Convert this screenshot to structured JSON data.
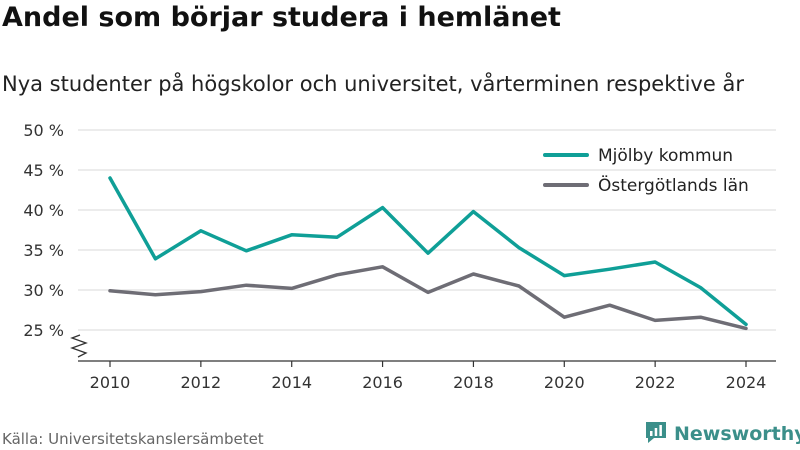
{
  "title": "Andel som börjar studera i hemlänet",
  "subtitle": "Nya studenter på högskolor och universitet, vårterminen respektive år",
  "source": "Källa: Universitetskanslersämbetet",
  "brand": {
    "name": "Newsworthy",
    "icon": "newsworthy-logo-icon",
    "color": "#3b8f8a"
  },
  "chart_data": {
    "type": "line",
    "x": [
      2010,
      2011,
      2012,
      2013,
      2014,
      2015,
      2016,
      2017,
      2018,
      2019,
      2020,
      2021,
      2022,
      2023,
      2024
    ],
    "x_ticks": [
      "2010",
      "2012",
      "2014",
      "2016",
      "2018",
      "2020",
      "2022",
      "2024"
    ],
    "y_ticks": [
      "25 %",
      "30 %",
      "35 %",
      "40 %",
      "45 %",
      "50 %"
    ],
    "ylim": [
      25,
      50
    ],
    "grid": true,
    "legend": "top-right",
    "series": [
      {
        "name": "Mjölby kommun",
        "color": "#0f9f97",
        "values": [
          44.0,
          33.9,
          37.4,
          34.9,
          36.9,
          36.6,
          40.3,
          34.6,
          39.8,
          35.3,
          31.8,
          32.6,
          33.5,
          30.3,
          25.7
        ]
      },
      {
        "name": "Östergötlands län",
        "color": "#6e6d75",
        "values": [
          29.9,
          29.4,
          29.8,
          30.6,
          30.2,
          31.9,
          32.9,
          29.7,
          32.0,
          30.5,
          26.6,
          28.1,
          26.2,
          26.6,
          25.2
        ]
      }
    ]
  }
}
